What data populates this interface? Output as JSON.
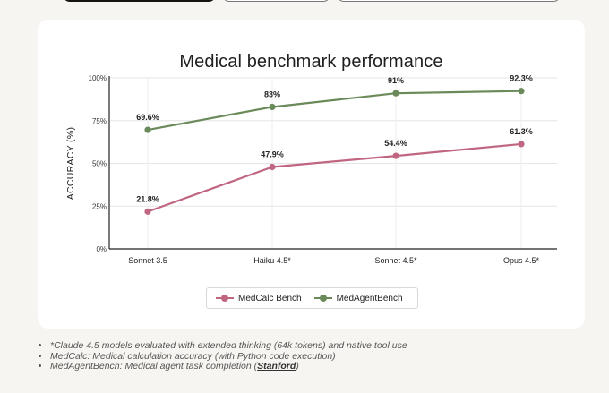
{
  "chart_data": {
    "type": "line",
    "title": "Medical benchmark performance",
    "xlabel": "",
    "ylabel": "ACCURACY (%)",
    "categories": [
      "Sonnet 3.5",
      "Haiku 4.5*",
      "Sonnet 4.5*",
      "Opus 4.5*"
    ],
    "ylim": [
      0,
      100
    ],
    "yticks": [
      0,
      25,
      50,
      75,
      100
    ],
    "ytick_labels": [
      "0%",
      "25%",
      "50%",
      "75%",
      "100%"
    ],
    "grid": true,
    "legend_position": "bottom-center",
    "series": [
      {
        "name": "MedCalc Bench",
        "color": "#c06680",
        "values": [
          21.8,
          47.9,
          54.4,
          61.3
        ],
        "labels": [
          "21.8%",
          "47.9%",
          "54.4%",
          "61.3%"
        ]
      },
      {
        "name": "MedAgentBench",
        "color": "#6b8a5a",
        "values": [
          69.6,
          83,
          91,
          92.3
        ],
        "labels": [
          "69.6%",
          "83%",
          "91%",
          "92.3%"
        ]
      }
    ]
  },
  "footnotes": {
    "note1": "*Claude 4.5 models evaluated with extended thinking (64k tokens) and native tool use",
    "note2": "MedCalc: Medical calculation accuracy (with Python code execution)",
    "note3_prefix": "MedAgentBench: Medical agent task completion (",
    "note3_link": "Stanford",
    "note3_suffix": ")"
  }
}
